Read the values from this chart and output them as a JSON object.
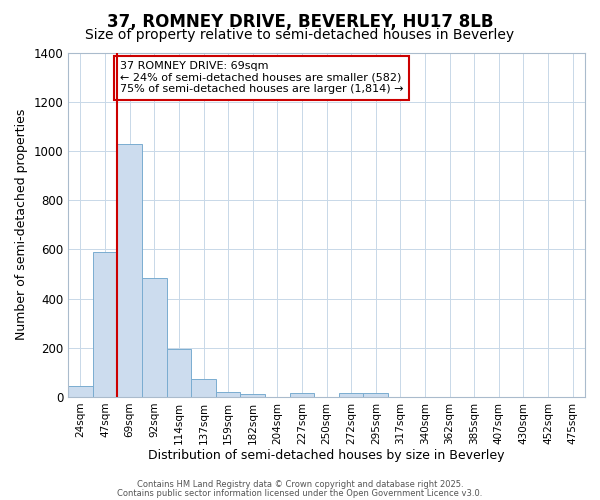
{
  "title": "37, ROMNEY DRIVE, BEVERLEY, HU17 8LB",
  "subtitle": "Size of property relative to semi-detached houses in Beverley",
  "xlabel": "Distribution of semi-detached houses by size in Beverley",
  "ylabel": "Number of semi-detached properties",
  "categories": [
    "24sqm",
    "47sqm",
    "69sqm",
    "92sqm",
    "114sqm",
    "137sqm",
    "159sqm",
    "182sqm",
    "204sqm",
    "227sqm",
    "250sqm",
    "272sqm",
    "295sqm",
    "317sqm",
    "340sqm",
    "362sqm",
    "385sqm",
    "407sqm",
    "430sqm",
    "452sqm",
    "475sqm"
  ],
  "values": [
    45,
    590,
    1030,
    485,
    195,
    72,
    20,
    12,
    0,
    17,
    0,
    17,
    17,
    0,
    0,
    0,
    0,
    0,
    0,
    0,
    0
  ],
  "bar_color": "#ccdcee",
  "bar_edge_color": "#7aacd0",
  "vline_color": "#cc0000",
  "vline_index": 2,
  "annotation_line1": "37 ROMNEY DRIVE: 69sqm",
  "annotation_line2": "← 24% of semi-detached houses are smaller (582)",
  "annotation_line3": "75% of semi-detached houses are larger (1,814) →",
  "annotation_box_color": "#cc0000",
  "ylim": [
    0,
    1400
  ],
  "yticks": [
    0,
    200,
    400,
    600,
    800,
    1000,
    1200,
    1400
  ],
  "background_color": "#ffffff",
  "plot_bg_color": "#ffffff",
  "grid_color": "#c8d8e8",
  "footer1": "Contains HM Land Registry data © Crown copyright and database right 2025.",
  "footer2": "Contains public sector information licensed under the Open Government Licence v3.0.",
  "title_fontsize": 12,
  "subtitle_fontsize": 10,
  "bar_width": 1.0
}
